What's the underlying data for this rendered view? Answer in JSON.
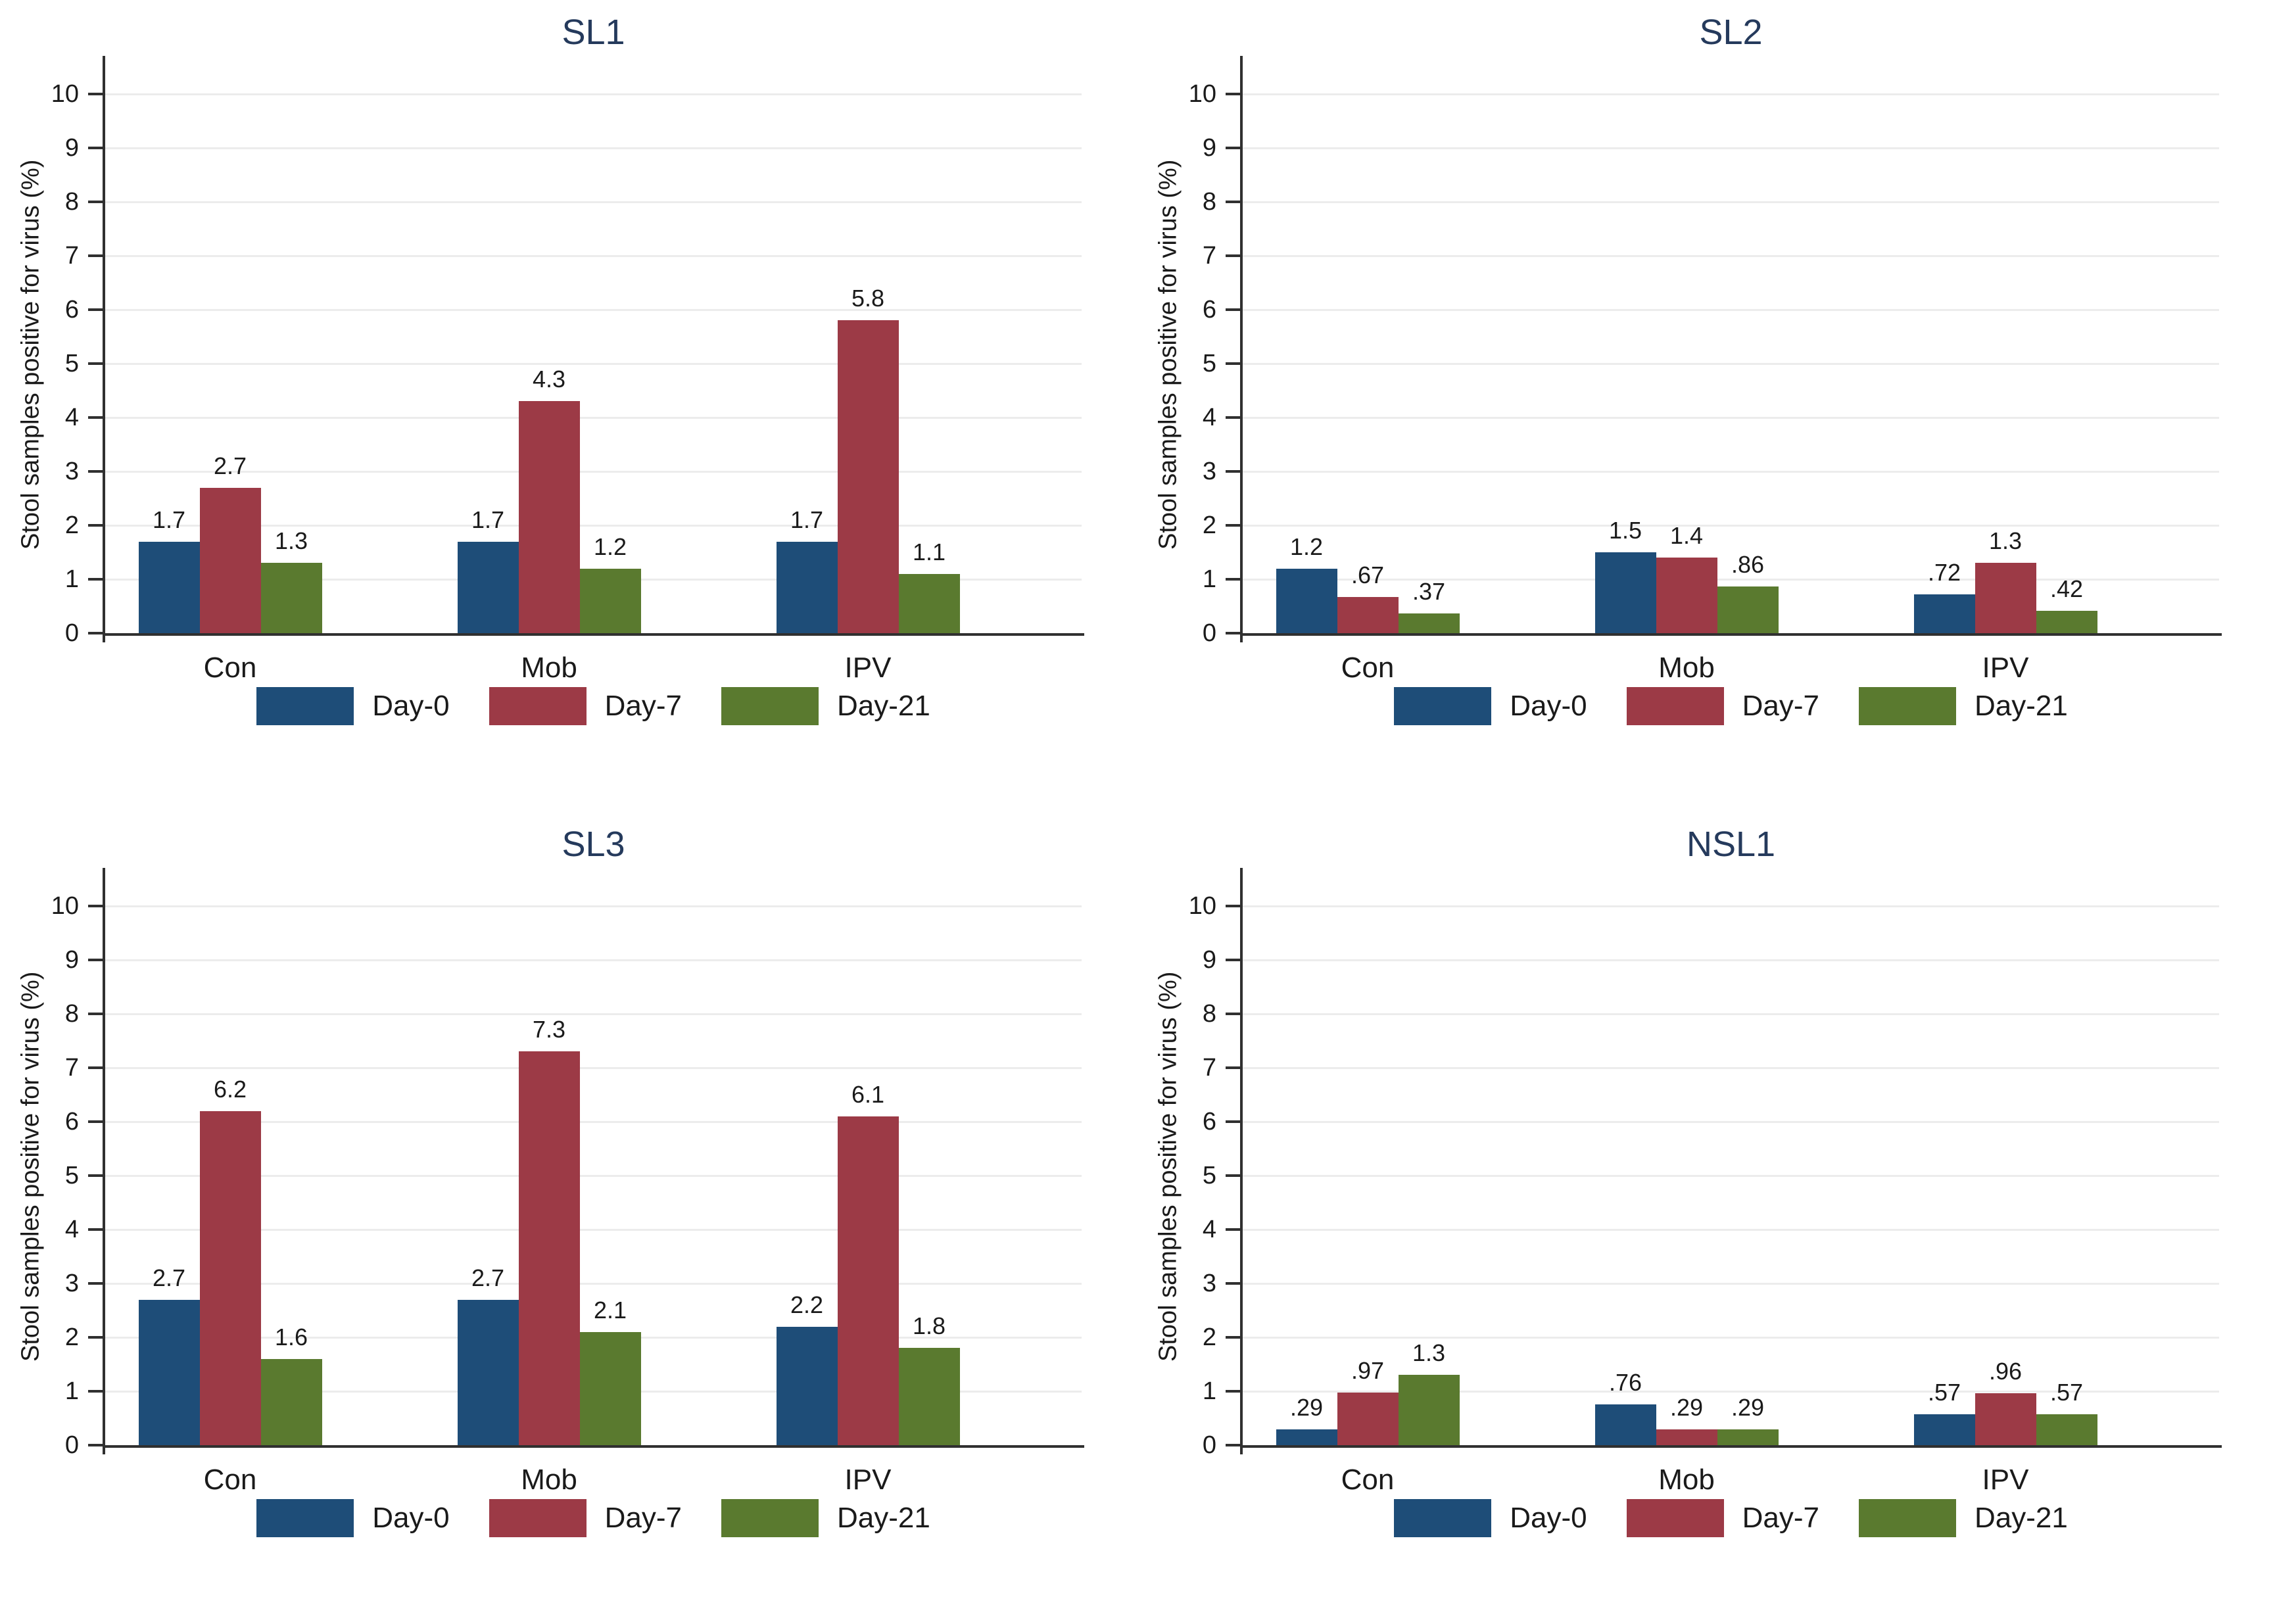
{
  "style": {
    "series_colors": [
      "#1e4d78",
      "#9c3a46",
      "#5a7a2f"
    ],
    "title_color": "#253a5c",
    "grid_color": "#ececec",
    "axis_color": "#303030",
    "background": "#ffffff"
  },
  "chart_data": [
    {
      "type": "bar",
      "title": "SL1",
      "ylabel": "Stool samples positive for virus (%)",
      "ylim": [
        0,
        10
      ],
      "yticks": [
        "0",
        "1",
        "2",
        "3",
        "4",
        "5",
        "6",
        "7",
        "8",
        "9",
        "10"
      ],
      "grid": true,
      "legend_position": "bottom",
      "categories": [
        "Con",
        "Mob",
        "IPV"
      ],
      "series": [
        {
          "name": "Day-0",
          "values": [
            1.7,
            1.7,
            1.7
          ]
        },
        {
          "name": "Day-7",
          "values": [
            2.7,
            4.3,
            5.8
          ]
        },
        {
          "name": "Day-21",
          "values": [
            1.3,
            1.2,
            1.1
          ]
        }
      ],
      "value_labels": [
        [
          "1.7",
          "1.7",
          "1.7"
        ],
        [
          "2.7",
          "4.3",
          "5.8"
        ],
        [
          "1.3",
          "1.2",
          "1.1"
        ]
      ]
    },
    {
      "type": "bar",
      "title": "SL2",
      "ylabel": "Stool samples positive for virus (%)",
      "ylim": [
        0,
        10
      ],
      "yticks": [
        "0",
        "1",
        "2",
        "3",
        "4",
        "5",
        "6",
        "7",
        "8",
        "9",
        "10"
      ],
      "grid": true,
      "legend_position": "bottom",
      "categories": [
        "Con",
        "Mob",
        "IPV"
      ],
      "series": [
        {
          "name": "Day-0",
          "values": [
            1.2,
            1.5,
            0.72
          ]
        },
        {
          "name": "Day-7",
          "values": [
            0.67,
            1.4,
            1.3
          ]
        },
        {
          "name": "Day-21",
          "values": [
            0.37,
            0.86,
            0.42
          ]
        }
      ],
      "value_labels": [
        [
          "1.2",
          "1.5",
          ".72"
        ],
        [
          ".67",
          "1.4",
          "1.3"
        ],
        [
          ".37",
          ".86",
          ".42"
        ]
      ]
    },
    {
      "type": "bar",
      "title": "SL3",
      "ylabel": "Stool samples positive for virus (%)",
      "ylim": [
        0,
        10
      ],
      "yticks": [
        "0",
        "1",
        "2",
        "3",
        "4",
        "5",
        "6",
        "7",
        "8",
        "9",
        "10"
      ],
      "grid": true,
      "legend_position": "bottom",
      "categories": [
        "Con",
        "Mob",
        "IPV"
      ],
      "series": [
        {
          "name": "Day-0",
          "values": [
            2.7,
            2.7,
            2.2
          ]
        },
        {
          "name": "Day-7",
          "values": [
            6.2,
            7.3,
            6.1
          ]
        },
        {
          "name": "Day-21",
          "values": [
            1.6,
            2.1,
            1.8
          ]
        }
      ],
      "value_labels": [
        [
          "2.7",
          "2.7",
          "2.2"
        ],
        [
          "6.2",
          "7.3",
          "6.1"
        ],
        [
          "1.6",
          "2.1",
          "1.8"
        ]
      ]
    },
    {
      "type": "bar",
      "title": "NSL1",
      "ylabel": "Stool samples positive for virus (%)",
      "ylim": [
        0,
        10
      ],
      "yticks": [
        "0",
        "1",
        "2",
        "3",
        "4",
        "5",
        "6",
        "7",
        "8",
        "9",
        "10"
      ],
      "grid": true,
      "legend_position": "bottom",
      "categories": [
        "Con",
        "Mob",
        "IPV"
      ],
      "series": [
        {
          "name": "Day-0",
          "values": [
            0.29,
            0.76,
            0.57
          ]
        },
        {
          "name": "Day-7",
          "values": [
            0.97,
            0.29,
            0.96
          ]
        },
        {
          "name": "Day-21",
          "values": [
            1.3,
            0.29,
            0.57
          ]
        }
      ],
      "value_labels": [
        [
          ".29",
          ".76",
          ".57"
        ],
        [
          ".97",
          ".29",
          ".96"
        ],
        [
          "1.3",
          ".29",
          ".57"
        ]
      ]
    }
  ]
}
